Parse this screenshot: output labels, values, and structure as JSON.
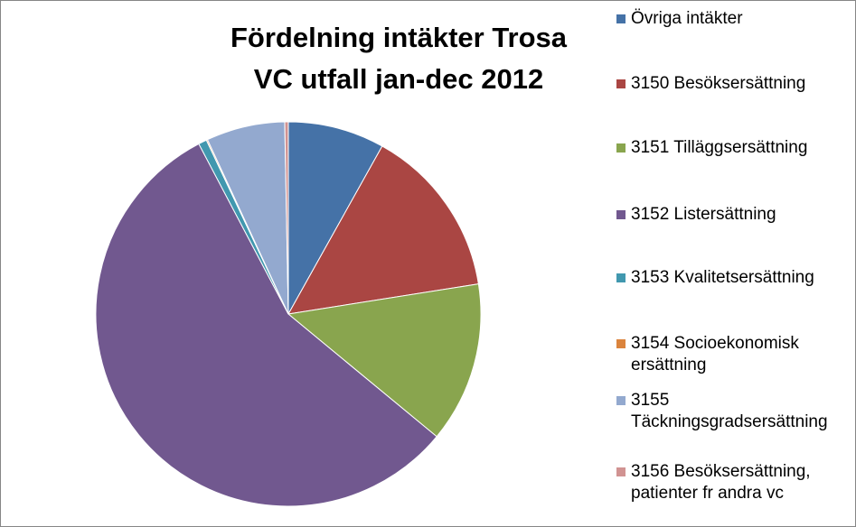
{
  "chart_data": {
    "type": "pie",
    "title": "Fördelning intäkter Trosa VC utfall jan-dec 2012",
    "categories": [
      "Övriga intäkter",
      "3150 Besöksersättning",
      "3151 Tilläggsersättning",
      "3152 Listersättning",
      "3153 Kvalitetsersättning",
      "3154 Socioekonomisk ersättning",
      "3155 Täckningsgradsersättning",
      "3156 Besöksersättning, patienter fr andra vc"
    ],
    "values": [
      8.1,
      14.4,
      13.5,
      56.3,
      0.7,
      0.1,
      6.6,
      0.3
    ],
    "colors": [
      "#4572a7",
      "#aa4643",
      "#89a54e",
      "#71588f",
      "#4198af",
      "#db843d",
      "#93a9cf",
      "#d19392"
    ],
    "legend": "right"
  }
}
